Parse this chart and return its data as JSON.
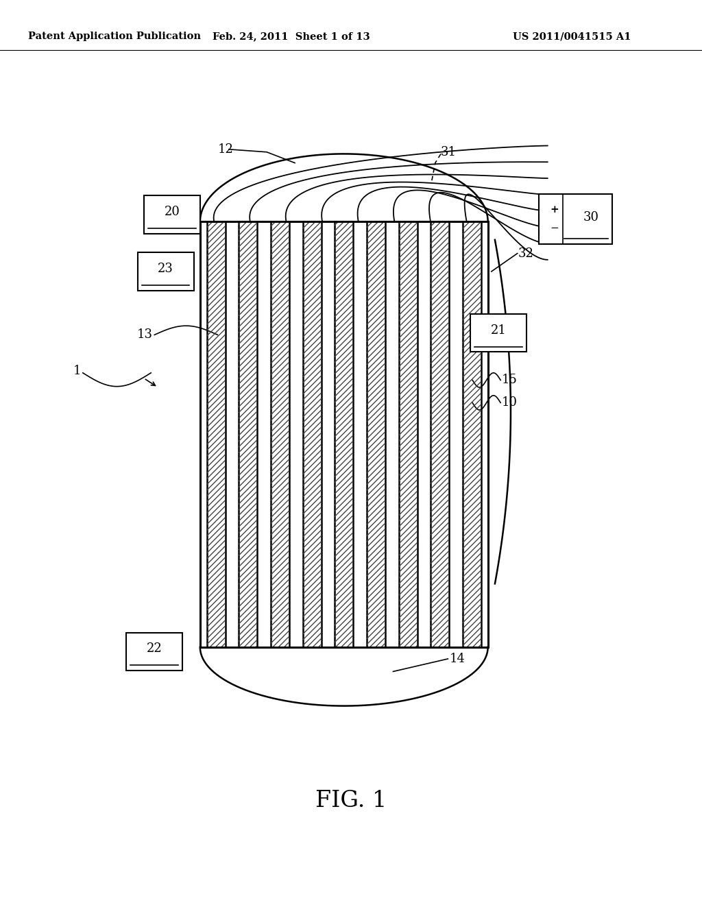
{
  "bg_color": "#ffffff",
  "header_text": "Patent Application Publication",
  "header_date": "Feb. 24, 2011  Sheet 1 of 13",
  "header_patent": "US 2011/0041515 A1",
  "fig_label": "FIG. 1",
  "lw_main": 1.8,
  "lw_thick": 2.2,
  "fs_label": 13,
  "fs_header": 10.5,
  "bL": 0.285,
  "bR": 0.695,
  "bT": 0.755,
  "bB": 0.285,
  "n_tubes": 9,
  "n_exit": 8
}
